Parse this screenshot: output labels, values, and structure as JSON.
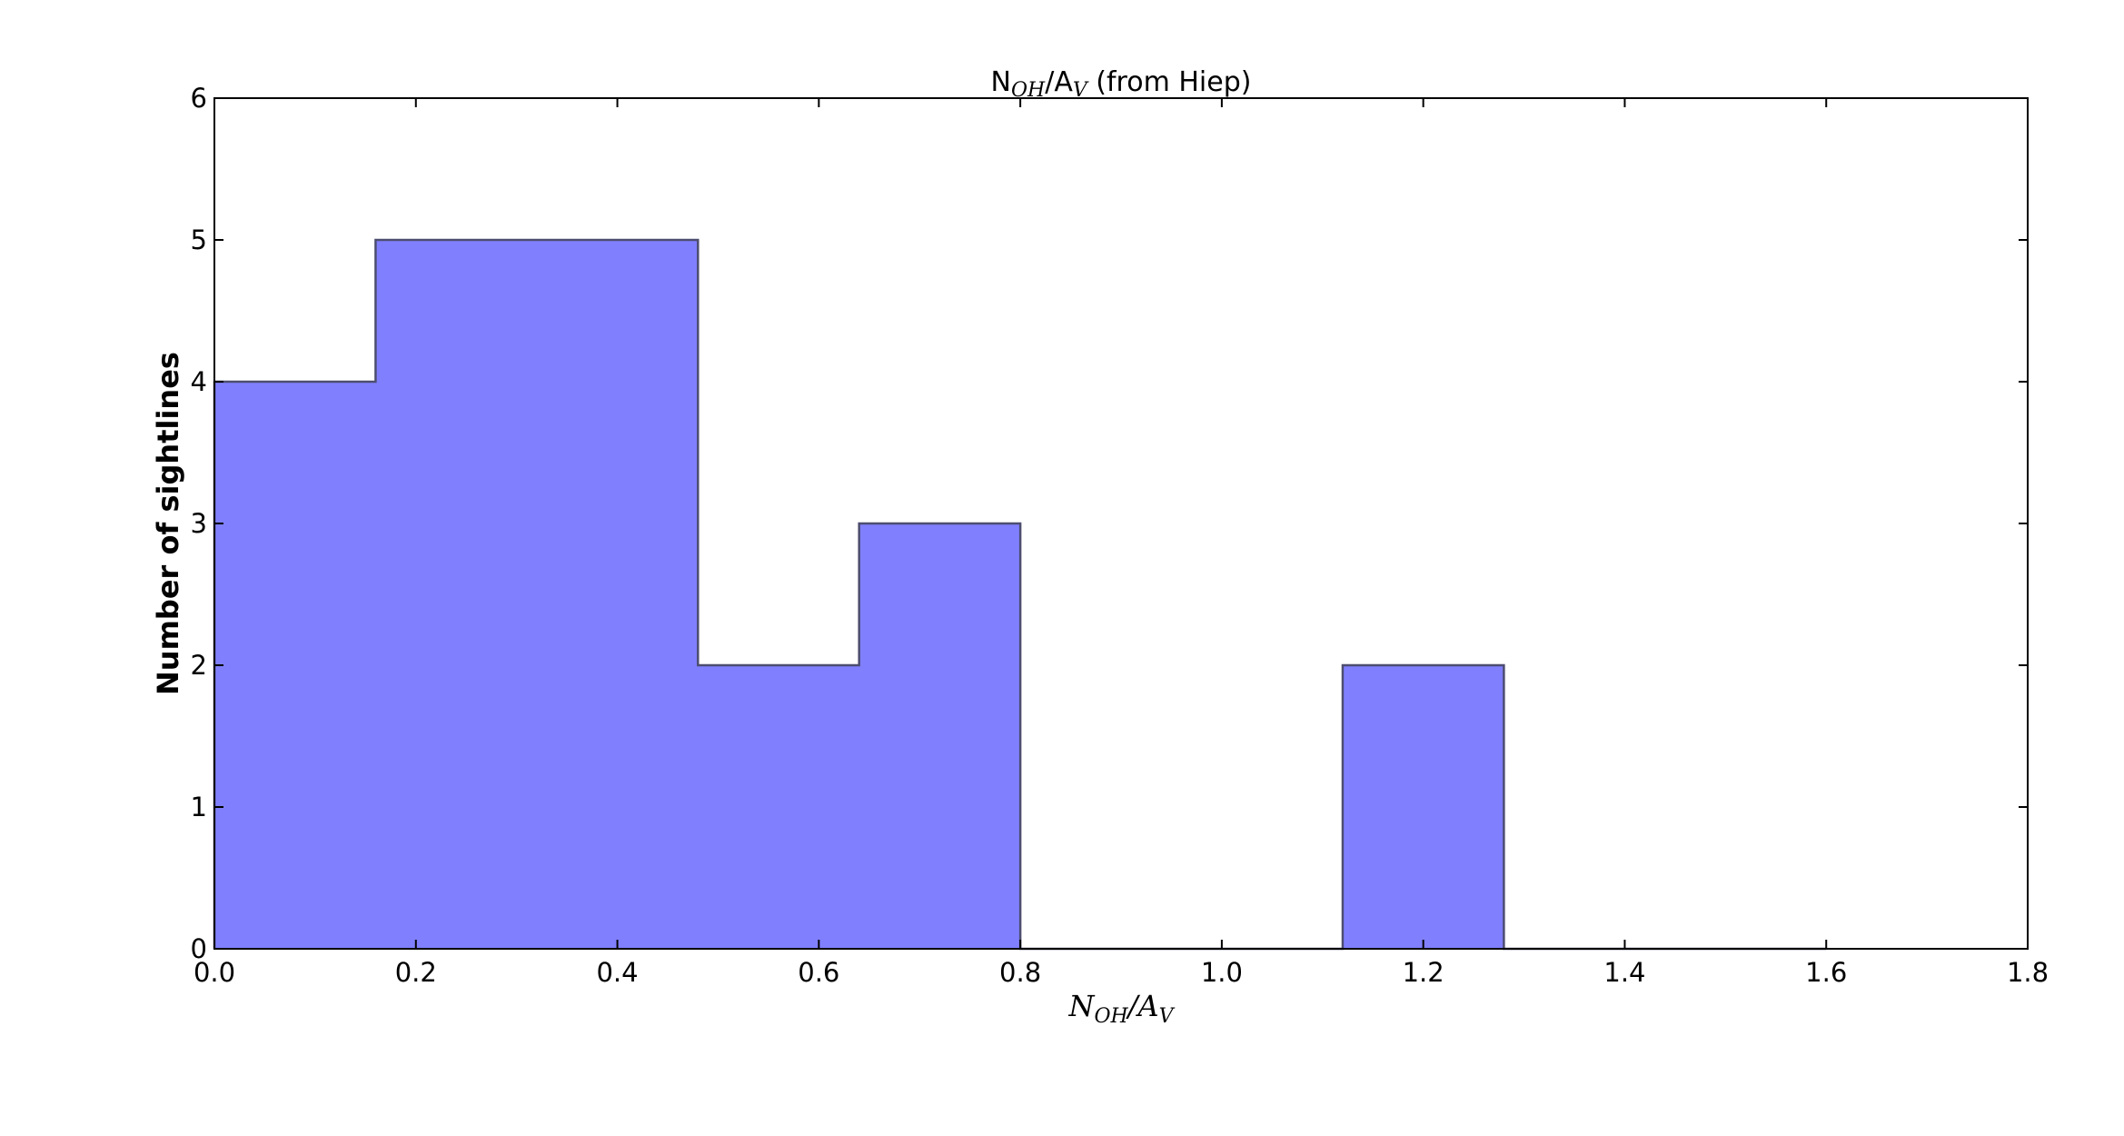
{
  "chart_data": {
    "type": "histogram",
    "title": "N_OH/A_V (from Hiep)",
    "title_parts": {
      "main": "N",
      "sub1": "OH",
      "slash": "/A",
      "sub2": "V",
      "rest": " (from Hiep)"
    },
    "xlabel": "N_OH/A_V",
    "xlabel_parts": {
      "main": "N",
      "sub1": "OH",
      "slash": "/A",
      "sub2": "V"
    },
    "ylabel": "Number of sightlines",
    "xlim": [
      0.0,
      1.8
    ],
    "ylim": [
      0,
      6
    ],
    "xticks": [
      "0.0",
      "0.2",
      "0.4",
      "0.6",
      "0.8",
      "1.0",
      "1.2",
      "1.4",
      "1.6",
      "1.8"
    ],
    "yticks": [
      "0",
      "1",
      "2",
      "3",
      "4",
      "5",
      "6"
    ],
    "bin_edges": [
      0.0,
      0.16,
      0.32,
      0.48,
      0.64,
      0.8,
      0.96,
      1.12,
      1.28,
      1.44,
      1.6
    ],
    "counts": [
      4,
      5,
      5,
      2,
      3,
      0,
      0,
      2,
      0,
      0
    ],
    "fill_color": "#8080ff",
    "edge_color": "#4d4d70",
    "grid": false
  }
}
